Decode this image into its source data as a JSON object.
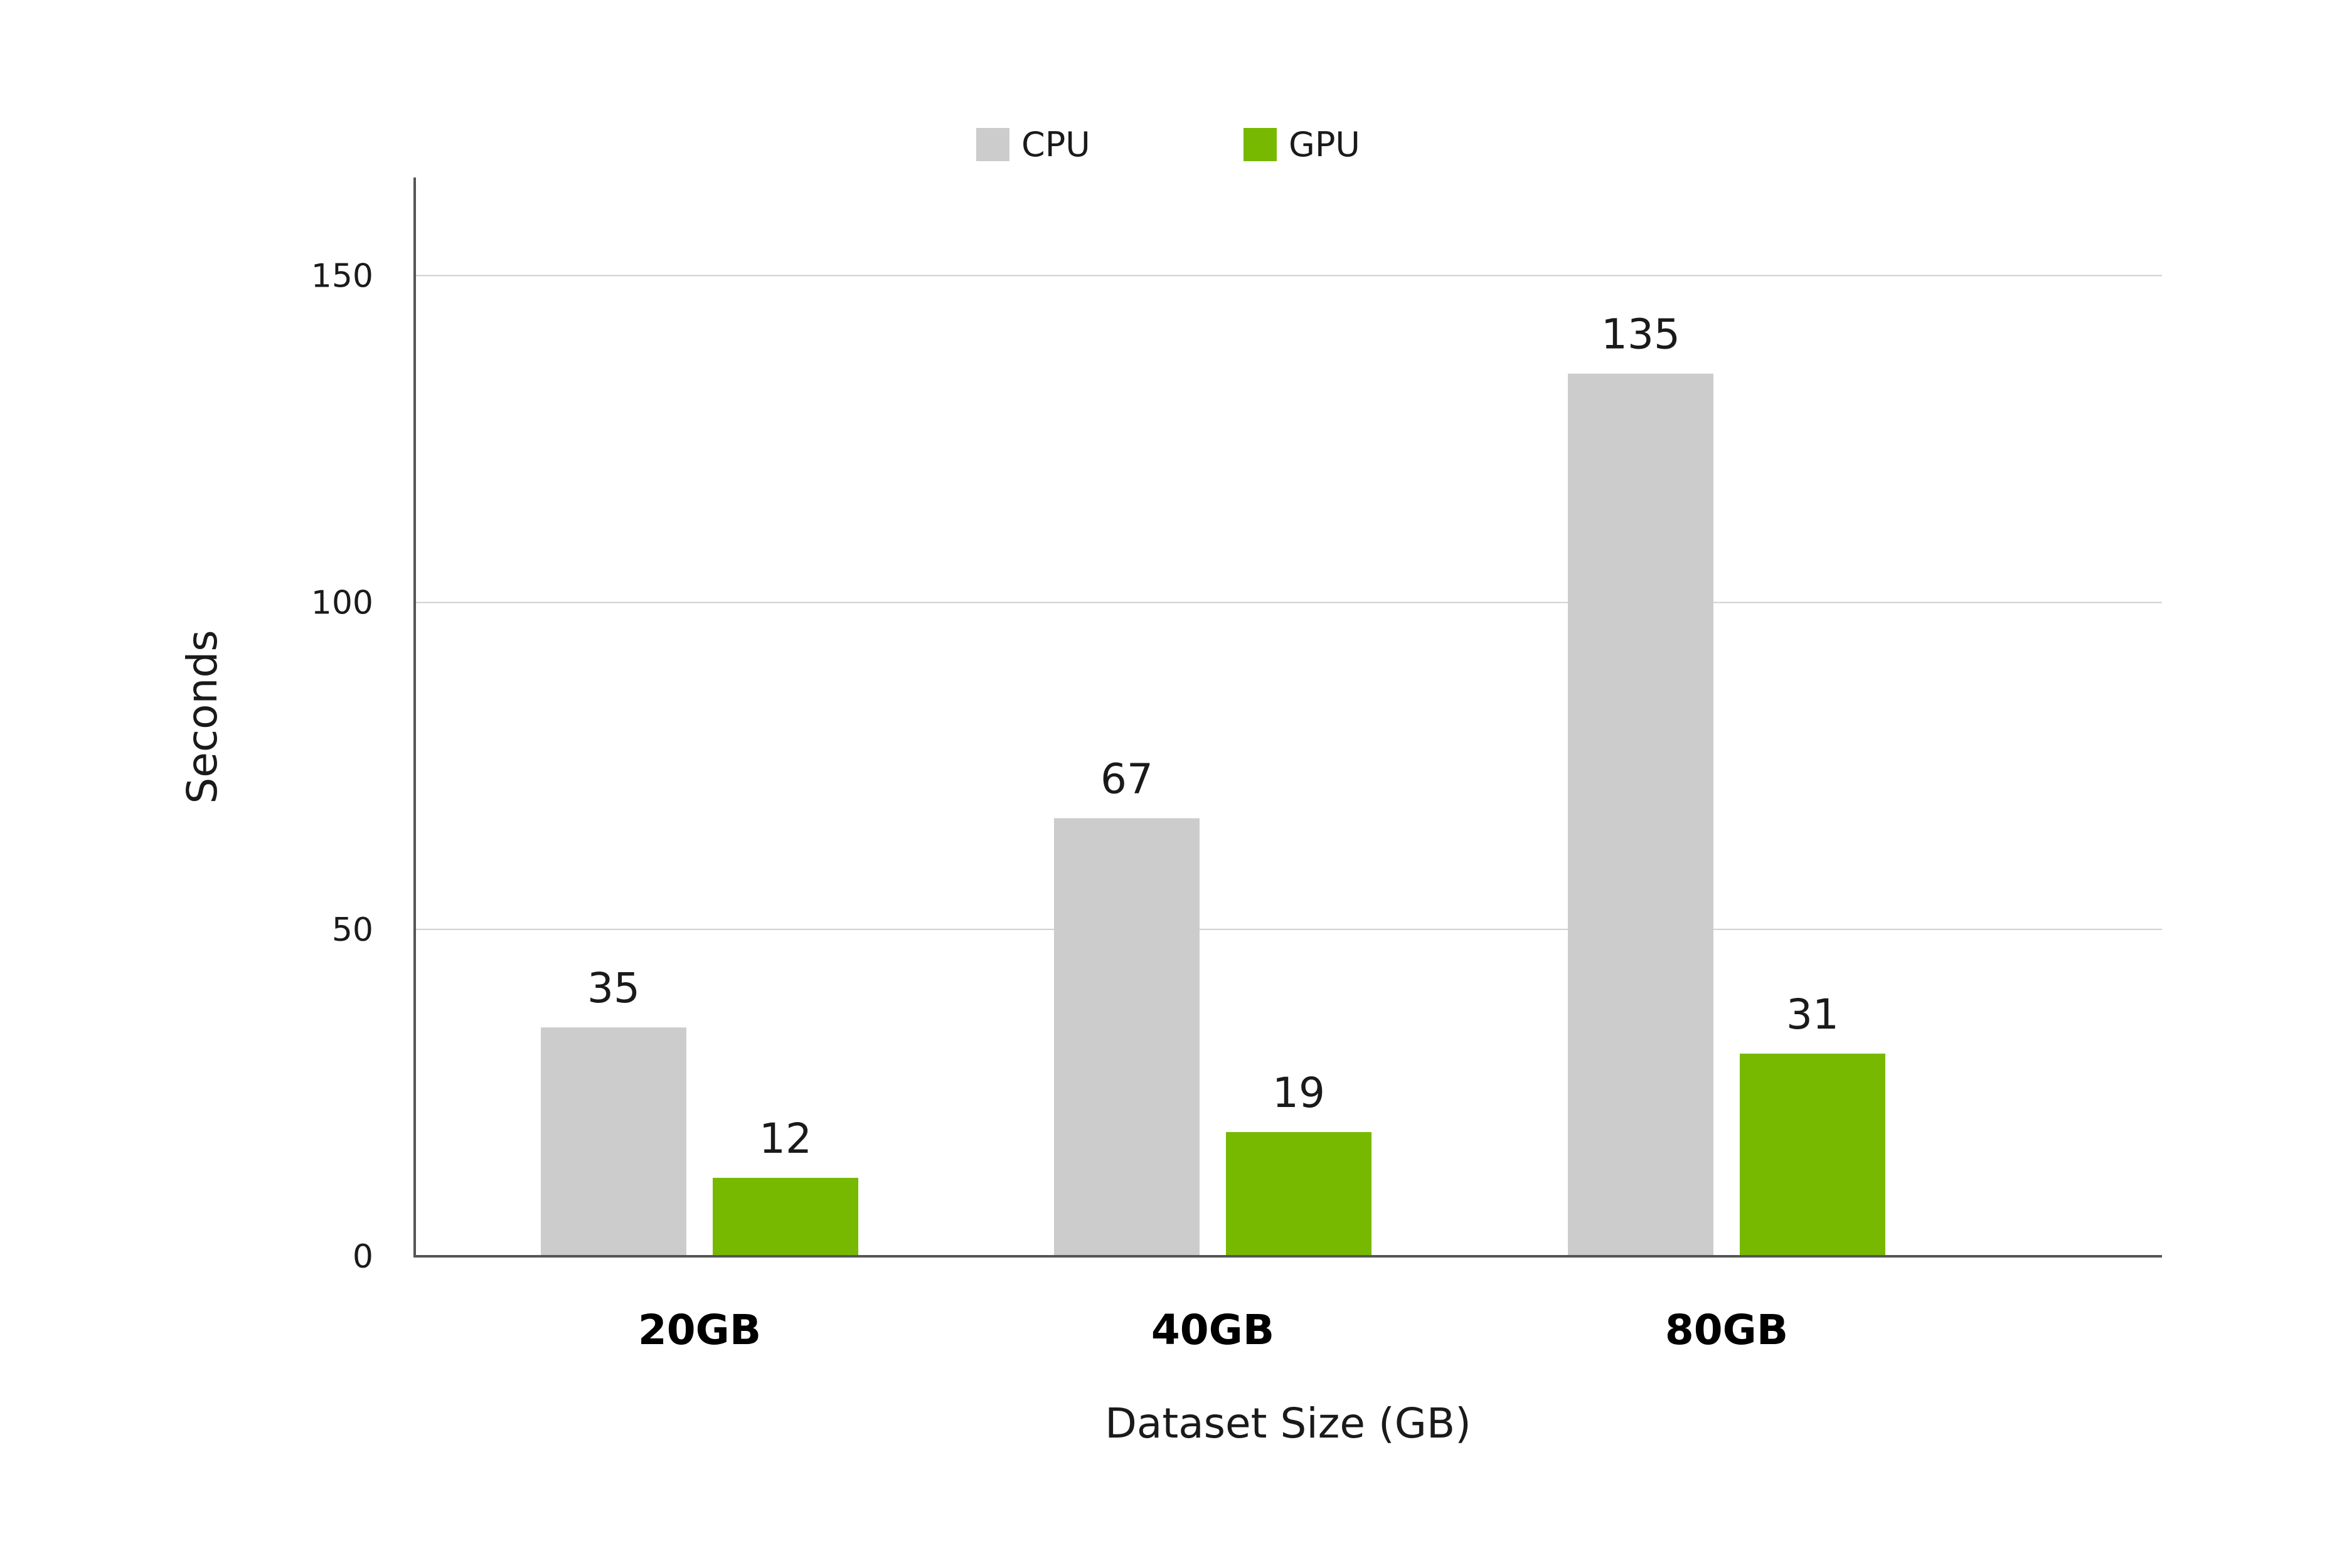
{
  "chart_data": {
    "type": "bar",
    "title": "",
    "xlabel": "Dataset Size (GB)",
    "ylabel": "Seconds",
    "categories": [
      "20GB",
      "40GB",
      "80GB"
    ],
    "series": [
      {
        "name": "CPU",
        "values": [
          35,
          67,
          135
        ],
        "color": "#cccccc"
      },
      {
        "name": "GPU",
        "values": [
          12,
          19,
          31
        ],
        "color": "#76b900"
      }
    ],
    "ylim": [
      0,
      165
    ],
    "yticks": [
      0,
      50,
      100,
      150
    ],
    "grid": true,
    "legend_position": "top-center",
    "data_labels": true
  }
}
